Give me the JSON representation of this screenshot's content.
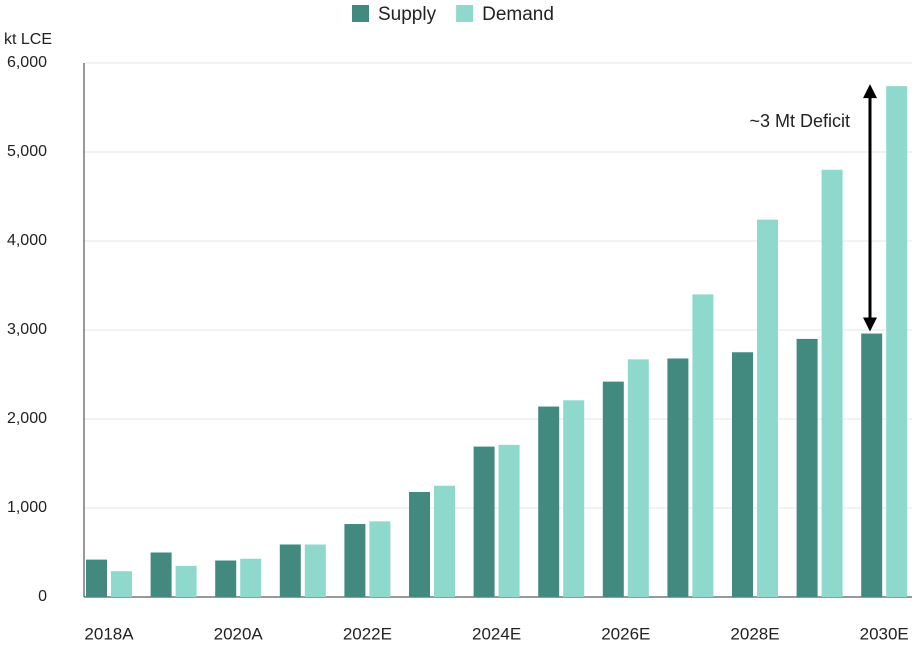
{
  "chart_data": {
    "type": "bar",
    "y_label": "kt LCE",
    "categories": [
      "2018A",
      null,
      "2020A",
      null,
      "2022E",
      null,
      "2024E",
      null,
      "2026E",
      null,
      "2028E",
      null,
      "2030E"
    ],
    "series": [
      {
        "name": "Supply",
        "color": "#428a80",
        "values": [
          420,
          500,
          410,
          590,
          820,
          1180,
          1690,
          2140,
          2420,
          2680,
          2750,
          2900,
          2960
        ]
      },
      {
        "name": "Demand",
        "color": "#8fd8cc",
        "values": [
          290,
          350,
          430,
          590,
          850,
          1250,
          1710,
          2210,
          2670,
          3400,
          4240,
          4800,
          5740
        ]
      }
    ],
    "ylim": [
      0,
      6000
    ],
    "yticks": [
      0,
      {
        "value": 1000,
        "label": "1,000"
      },
      {
        "value": 2000,
        "label": "2,000"
      },
      {
        "value": 3000,
        "label": "3,000"
      },
      {
        "value": 4000,
        "label": "4,000"
      },
      {
        "value": 5000,
        "label": "5,000"
      },
      {
        "value": 6000,
        "label": "6,000"
      }
    ],
    "grid": true,
    "legend": "top",
    "annotation": "~3 Mt Deficit"
  }
}
